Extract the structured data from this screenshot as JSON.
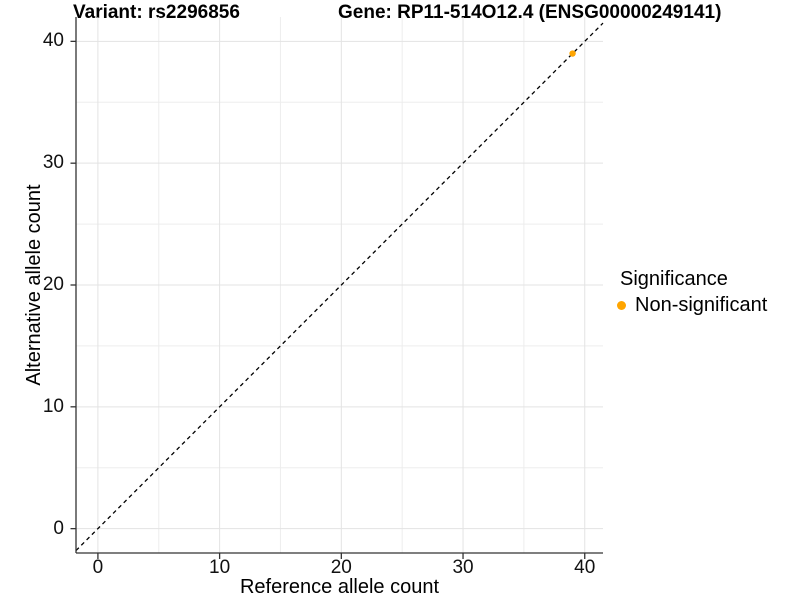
{
  "chart_data": {
    "type": "scatter",
    "titles": {
      "left": "Variant: rs2296856",
      "right": "Gene: RP11-514O12.4 (ENSG00000249141)"
    },
    "xlabel": "Reference allele count",
    "ylabel": "Alternative allele count",
    "xlim": [
      -1.8,
      41.5
    ],
    "ylim": [
      -2.0,
      42.0
    ],
    "xticks": [
      0,
      10,
      20,
      30,
      40
    ],
    "yticks": [
      0,
      10,
      20,
      30,
      40
    ],
    "minor_grid_step": 5,
    "grid": "on",
    "series": [
      {
        "name": "Non-significant",
        "color": "#FFA500",
        "points": [
          {
            "x": 39,
            "y": 39
          }
        ]
      }
    ],
    "reference_line": {
      "kind": "identity y=x",
      "style": "dashed",
      "color": "#000000"
    },
    "legend": {
      "title": "Significance",
      "position": "right",
      "entries": [
        {
          "label": "Non-significant",
          "color": "#FFA500"
        }
      ]
    },
    "style_colors": {
      "grid_major": "#E3E3E3",
      "grid_minor": "#EDEDED",
      "axis": "#333333",
      "tick": "#333333",
      "text": "#000000"
    }
  }
}
